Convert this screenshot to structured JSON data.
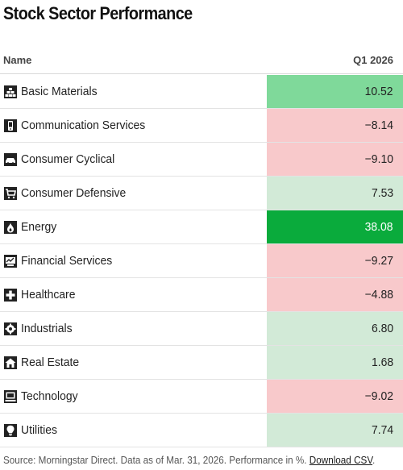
{
  "title": "Stock Sector Performance",
  "columns": {
    "name": "Name",
    "value": "Q1 2026"
  },
  "colors": {
    "strong_positive": "#0aab3c",
    "positive": "#7fd99a",
    "mild_positive": "#d2ead7",
    "negative": "#f8c9cb"
  },
  "rows": [
    {
      "label": "Basic Materials",
      "value": "10.52",
      "icon": "basic-materials-icon",
      "color": "#7fd99a",
      "text_color": "#222222"
    },
    {
      "label": "Communication Services",
      "value": "−8.14",
      "icon": "communication-services-icon",
      "color": "#f8c9cb",
      "text_color": "#222222"
    },
    {
      "label": "Consumer Cyclical",
      "value": "−9.10",
      "icon": "consumer-cyclical-icon",
      "color": "#f8c9cb",
      "text_color": "#222222"
    },
    {
      "label": "Consumer Defensive",
      "value": "7.53",
      "icon": "consumer-defensive-icon",
      "color": "#d2ead7",
      "text_color": "#222222"
    },
    {
      "label": "Energy",
      "value": "38.08",
      "icon": "energy-icon",
      "color": "#0aab3c",
      "text_color": "#ffffff"
    },
    {
      "label": "Financial Services",
      "value": "−9.27",
      "icon": "financial-services-icon",
      "color": "#f8c9cb",
      "text_color": "#222222"
    },
    {
      "label": "Healthcare",
      "value": "−4.88",
      "icon": "healthcare-icon",
      "color": "#f8c9cb",
      "text_color": "#222222"
    },
    {
      "label": "Industrials",
      "value": "6.80",
      "icon": "industrials-icon",
      "color": "#d2ead7",
      "text_color": "#222222"
    },
    {
      "label": "Real Estate",
      "value": "1.68",
      "icon": "real-estate-icon",
      "color": "#d2ead7",
      "text_color": "#222222"
    },
    {
      "label": "Technology",
      "value": "−9.02",
      "icon": "technology-icon",
      "color": "#f8c9cb",
      "text_color": "#222222"
    },
    {
      "label": "Utilities",
      "value": "7.74",
      "icon": "utilities-icon",
      "color": "#d2ead7",
      "text_color": "#222222"
    }
  ],
  "footer": {
    "source": "Source: Morningstar Direct. Data as of Mar. 31, 2026. Performance in %.",
    "link": "Download CSV",
    "end": "."
  },
  "chart_data": {
    "type": "table",
    "title": "Stock Sector Performance",
    "columns": [
      "Name",
      "Q1 2026"
    ],
    "categories": [
      "Basic Materials",
      "Communication Services",
      "Consumer Cyclical",
      "Consumer Defensive",
      "Energy",
      "Financial Services",
      "Healthcare",
      "Industrials",
      "Real Estate",
      "Technology",
      "Utilities"
    ],
    "values": [
      10.52,
      -8.14,
      -9.1,
      7.53,
      38.08,
      -9.27,
      -4.88,
      6.8,
      1.68,
      -9.02,
      7.74
    ]
  }
}
